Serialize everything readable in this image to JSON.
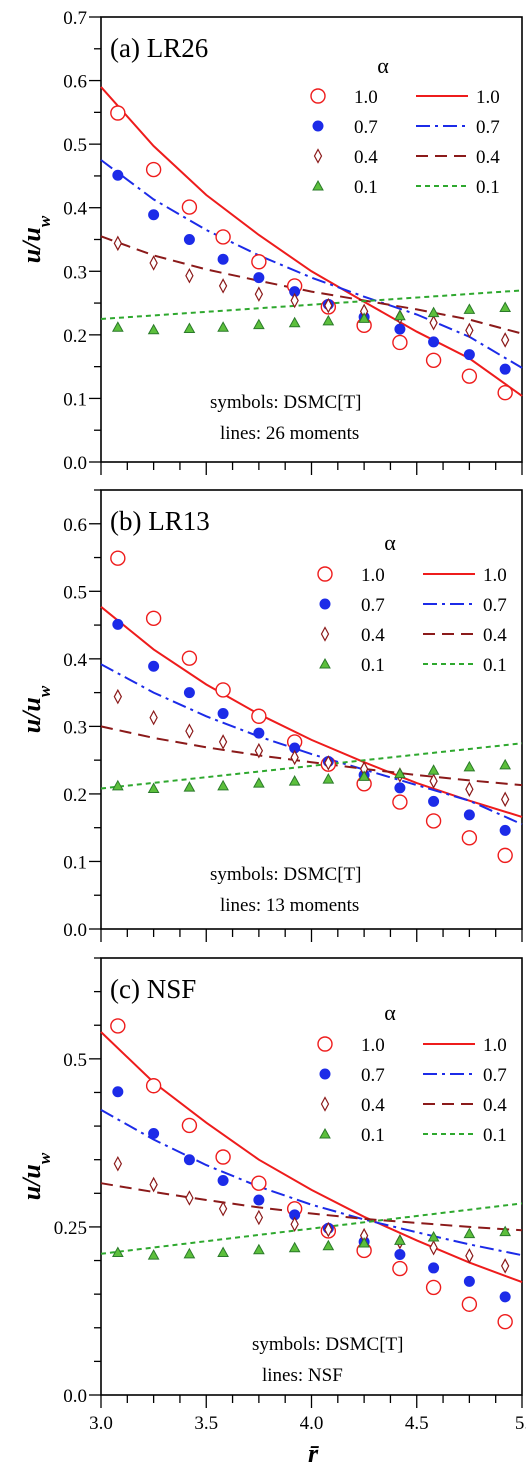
{
  "colors": {
    "a10": "#ee1c1c",
    "a07": "#1c2be8",
    "a04": "#8b1a1a",
    "a01": "#2ea82e",
    "a01_fill": "#5cbf3c"
  },
  "chart_data": [
    {
      "type": "scatter",
      "title": "(a) LR26",
      "ylabel_main": "u/u",
      "ylabel_sub": "w",
      "xlim": [
        3.0,
        5.0
      ],
      "ylim": [
        0.0,
        0.7
      ],
      "yticks": [
        0.0,
        0.1,
        0.2,
        0.3,
        0.4,
        0.5,
        0.6,
        0.7
      ],
      "ytick_labels": [
        "0.0",
        "0.1",
        "0.2",
        "0.3",
        "0.4",
        "0.5",
        "0.6",
        "0.7"
      ],
      "legend_title": "α",
      "legend_entries": [
        "1.0",
        "0.7",
        "0.4",
        "0.1"
      ],
      "annotation_line1": "symbols: DSMC[T]",
      "annotation_line2": "lines: 26 moments",
      "grid": false,
      "symbol_x": [
        3.08,
        3.25,
        3.42,
        3.58,
        3.75,
        3.92,
        4.08,
        4.25,
        4.42,
        4.58,
        4.75,
        4.92
      ],
      "series": [
        {
          "alpha": "1.0",
          "marker": "open-circle",
          "line": "solid",
          "symbols": [
            0.549,
            0.46,
            0.401,
            0.354,
            0.315,
            0.277,
            0.244,
            0.215,
            0.188,
            0.16,
            0.135,
            0.109
          ],
          "line_x": [
            3.0,
            3.25,
            3.5,
            3.75,
            4.0,
            4.25,
            4.5,
            4.75,
            5.0
          ],
          "line_y": [
            0.59,
            0.497,
            0.42,
            0.357,
            0.3,
            0.252,
            0.205,
            0.163,
            0.104
          ]
        },
        {
          "alpha": "0.7",
          "marker": "filled-circle",
          "line": "dashdot",
          "symbols": [
            0.451,
            0.389,
            0.35,
            0.319,
            0.29,
            0.268,
            0.248,
            0.228,
            0.209,
            0.189,
            0.169,
            0.146
          ],
          "line_x": [
            3.0,
            3.25,
            3.5,
            3.75,
            4.0,
            4.25,
            4.5,
            4.75,
            5.0
          ],
          "line_y": [
            0.475,
            0.413,
            0.365,
            0.325,
            0.29,
            0.26,
            0.232,
            0.197,
            0.148
          ]
        },
        {
          "alpha": "0.4",
          "marker": "open-diamond",
          "line": "dashed",
          "symbols": [
            0.344,
            0.313,
            0.293,
            0.277,
            0.264,
            0.254,
            0.246,
            0.237,
            0.228,
            0.219,
            0.207,
            0.192
          ],
          "line_x": [
            3.0,
            3.25,
            3.5,
            3.75,
            4.0,
            4.25,
            4.5,
            4.75,
            5.0
          ],
          "line_y": [
            0.355,
            0.325,
            0.303,
            0.285,
            0.268,
            0.254,
            0.24,
            0.224,
            0.202
          ]
        },
        {
          "alpha": "0.1",
          "marker": "filled-triangle",
          "line": "dotted",
          "symbols": [
            0.212,
            0.208,
            0.21,
            0.212,
            0.216,
            0.219,
            0.222,
            0.226,
            0.23,
            0.235,
            0.24,
            0.243
          ],
          "line_x": [
            3.0,
            5.0
          ],
          "line_y": [
            0.225,
            0.27
          ]
        }
      ]
    },
    {
      "type": "scatter",
      "title": "(b) LR13",
      "ylabel_main": "u/u",
      "ylabel_sub": "w",
      "xlim": [
        3.0,
        5.0
      ],
      "ylim": [
        0.0,
        0.65
      ],
      "yticks": [
        0.0,
        0.1,
        0.2,
        0.3,
        0.4,
        0.5,
        0.6
      ],
      "ytick_labels": [
        "0.0",
        "0.1",
        "0.2",
        "0.3",
        "0.4",
        "0.5",
        "0.6"
      ],
      "legend_title": "α",
      "legend_entries": [
        "1.0",
        "0.7",
        "0.4",
        "0.1"
      ],
      "annotation_line1": "symbols: DSMC[T]",
      "annotation_line2": "lines: 13 moments",
      "grid": false,
      "symbol_x": [
        3.08,
        3.25,
        3.42,
        3.58,
        3.75,
        3.92,
        4.08,
        4.25,
        4.42,
        4.58,
        4.75,
        4.92
      ],
      "series": [
        {
          "alpha": "1.0",
          "marker": "open-circle",
          "line": "solid",
          "symbols": [
            0.549,
            0.46,
            0.401,
            0.354,
            0.315,
            0.277,
            0.244,
            0.215,
            0.188,
            0.16,
            0.135,
            0.109
          ],
          "line_x": [
            3.0,
            3.25,
            3.5,
            3.75,
            4.0,
            4.25,
            4.5,
            4.75,
            5.0
          ],
          "line_y": [
            0.477,
            0.414,
            0.362,
            0.318,
            0.28,
            0.247,
            0.216,
            0.19,
            0.166
          ]
        },
        {
          "alpha": "0.7",
          "marker": "filled-circle",
          "line": "dashdot",
          "symbols": [
            0.451,
            0.389,
            0.35,
            0.319,
            0.29,
            0.268,
            0.248,
            0.228,
            0.209,
            0.189,
            0.169,
            0.146
          ],
          "line_x": [
            3.0,
            3.25,
            3.5,
            3.75,
            4.0,
            4.25,
            4.5,
            4.75,
            5.0
          ],
          "line_y": [
            0.392,
            0.35,
            0.315,
            0.285,
            0.259,
            0.236,
            0.213,
            0.19,
            0.155
          ]
        },
        {
          "alpha": "0.4",
          "marker": "open-diamond",
          "line": "dashed",
          "symbols": [
            0.344,
            0.313,
            0.293,
            0.277,
            0.264,
            0.254,
            0.246,
            0.237,
            0.228,
            0.219,
            0.207,
            0.192
          ],
          "line_x": [
            3.0,
            3.25,
            3.5,
            3.75,
            4.0,
            4.25,
            4.5,
            4.75,
            5.0
          ],
          "line_y": [
            0.3,
            0.283,
            0.269,
            0.257,
            0.247,
            0.237,
            0.228,
            0.22,
            0.213
          ]
        },
        {
          "alpha": "0.1",
          "marker": "filled-triangle",
          "line": "dotted",
          "symbols": [
            0.212,
            0.208,
            0.21,
            0.212,
            0.216,
            0.219,
            0.222,
            0.226,
            0.23,
            0.235,
            0.24,
            0.243
          ],
          "line_x": [
            3.0,
            5.0
          ],
          "line_y": [
            0.208,
            0.275
          ]
        }
      ]
    },
    {
      "type": "scatter",
      "title": "(c) NSF",
      "ylabel_main": "u/u",
      "ylabel_sub": "w",
      "xlim": [
        3.0,
        5.0
      ],
      "ylim": [
        0.0,
        0.65
      ],
      "yticks": [
        0.0,
        0.25,
        0.5
      ],
      "ytick_labels": [
        "0.0",
        "0.25",
        "0.5"
      ],
      "xticks": [
        3.0,
        3.5,
        4.0,
        4.5,
        5.0
      ],
      "xtick_labels": [
        "3.0",
        "3.5",
        "4.0",
        "4.5",
        "5."
      ],
      "xlabel": "r̄",
      "legend_title": "α",
      "legend_entries": [
        "1.0",
        "0.7",
        "0.4",
        "0.1"
      ],
      "annotation_line1": "symbols: DSMC[T]",
      "annotation_line2": "lines: NSF",
      "grid": false,
      "symbol_x": [
        3.08,
        3.25,
        3.42,
        3.58,
        3.75,
        3.92,
        4.08,
        4.25,
        4.42,
        4.58,
        4.75,
        4.92
      ],
      "series": [
        {
          "alpha": "1.0",
          "marker": "open-circle",
          "line": "solid",
          "symbols": [
            0.549,
            0.46,
            0.401,
            0.354,
            0.315,
            0.277,
            0.244,
            0.215,
            0.188,
            0.16,
            0.135,
            0.109
          ],
          "line_x": [
            3.0,
            3.25,
            3.5,
            3.75,
            4.0,
            4.25,
            4.5,
            4.75,
            5.0
          ],
          "line_y": [
            0.54,
            0.465,
            0.405,
            0.35,
            0.305,
            0.265,
            0.23,
            0.197,
            0.168
          ]
        },
        {
          "alpha": "0.7",
          "marker": "filled-circle",
          "line": "dashdot",
          "symbols": [
            0.451,
            0.389,
            0.35,
            0.319,
            0.29,
            0.268,
            0.248,
            0.228,
            0.209,
            0.189,
            0.169,
            0.146
          ],
          "line_x": [
            3.0,
            3.25,
            3.5,
            3.75,
            4.0,
            4.25,
            4.5,
            4.75,
            5.0
          ],
          "line_y": [
            0.424,
            0.38,
            0.342,
            0.31,
            0.283,
            0.261,
            0.242,
            0.224,
            0.208
          ]
        },
        {
          "alpha": "0.4",
          "marker": "open-diamond",
          "line": "dashed",
          "symbols": [
            0.344,
            0.313,
            0.293,
            0.277,
            0.264,
            0.254,
            0.246,
            0.237,
            0.228,
            0.219,
            0.207,
            0.192
          ],
          "line_x": [
            3.0,
            3.25,
            3.5,
            3.75,
            4.0,
            4.25,
            4.5,
            4.75,
            5.0
          ],
          "line_y": [
            0.315,
            0.302,
            0.29,
            0.279,
            0.27,
            0.262,
            0.256,
            0.25,
            0.245
          ]
        },
        {
          "alpha": "0.1",
          "marker": "filled-triangle",
          "line": "dotted",
          "symbols": [
            0.212,
            0.208,
            0.21,
            0.212,
            0.216,
            0.219,
            0.222,
            0.226,
            0.23,
            0.235,
            0.24,
            0.243
          ],
          "line_x": [
            3.0,
            5.0
          ],
          "line_y": [
            0.21,
            0.285
          ]
        }
      ]
    }
  ]
}
